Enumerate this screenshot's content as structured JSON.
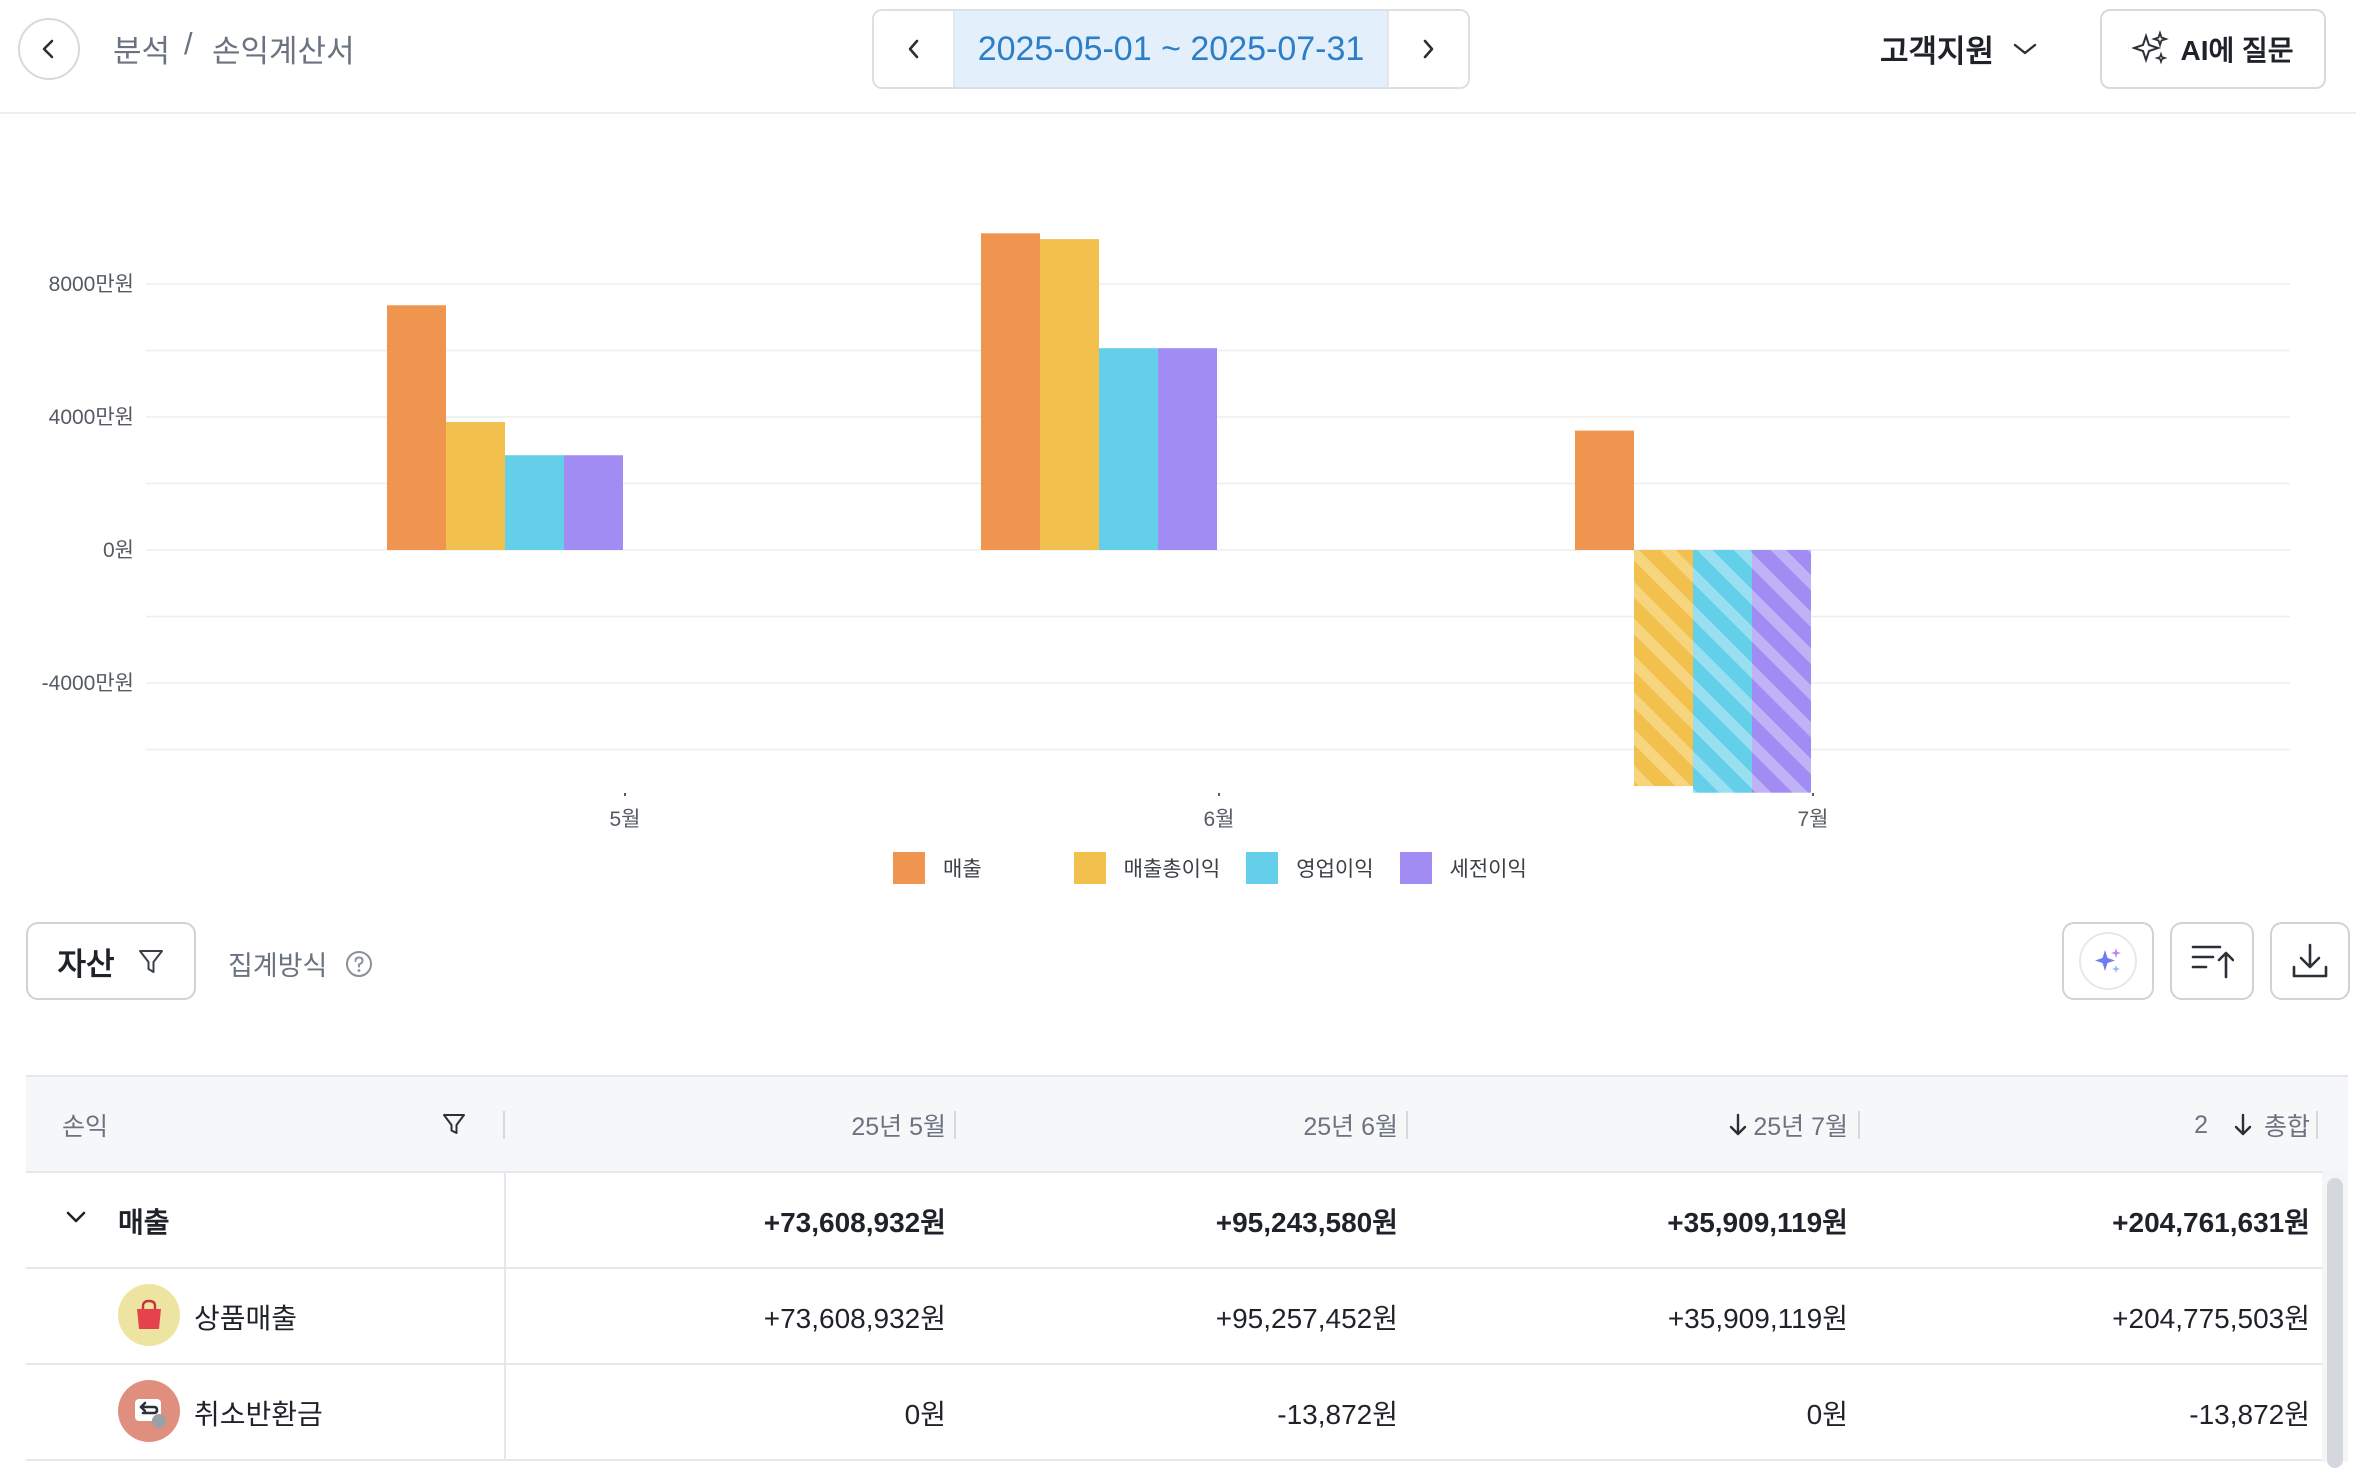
{
  "header": {
    "breadcrumb": [
      "분석",
      "/",
      "손익계산서"
    ],
    "date_range": "2025-05-01 ~ 2025-07-31",
    "support_label": "고객지원",
    "ai_button_label": "AI에 질문"
  },
  "chart_data": {
    "type": "bar",
    "categories": [
      "5월",
      "6월",
      "7월"
    ],
    "series": [
      {
        "name": "매출",
        "color": "#ef9550",
        "values": [
          73608932,
          95243580,
          35909119
        ]
      },
      {
        "name": "매출총이익",
        "color": "#f2c04c",
        "values": [
          38500000,
          93500000,
          -71000000
        ]
      },
      {
        "name": "영업이익",
        "color": "#63cfe9",
        "values": [
          28500000,
          60700000,
          -73000000
        ]
      },
      {
        "name": "세전이익",
        "color": "#a18cf3",
        "values": [
          28500000,
          60700000,
          -73000000
        ]
      }
    ],
    "yticks": [
      8000,
      4000,
      0,
      -4000
    ],
    "ytick_labels": [
      "8000만원",
      "4000만원",
      "0원",
      "-4000만원"
    ],
    "ylim": [
      -80000000,
      100000000
    ],
    "negative_pattern": "diagonal-stripes",
    "grid": true,
    "legend": "bottom-center"
  },
  "toolbar": {
    "asset_label": "자산",
    "agg_label": "집계방식"
  },
  "table": {
    "headers": [
      "손익",
      "25년 5월",
      "25년 6월",
      "25년 7월",
      "총합"
    ],
    "sort_badge": "2",
    "rows": [
      {
        "label": "매출",
        "values": [
          "+73,608,932원",
          "+95,243,580원",
          "+35,909,119원",
          "+204,761,631원"
        ],
        "group": true
      },
      {
        "label": "상품매출",
        "values": [
          "+73,608,932원",
          "+95,257,452원",
          "+35,909,119원",
          "+204,775,503원"
        ],
        "icon": "shopping-bag-icon"
      },
      {
        "label": "취소반환금",
        "values": [
          "0원",
          "-13,872원",
          "0원",
          "-13,872원"
        ],
        "icon": "refund-icon"
      }
    ]
  }
}
